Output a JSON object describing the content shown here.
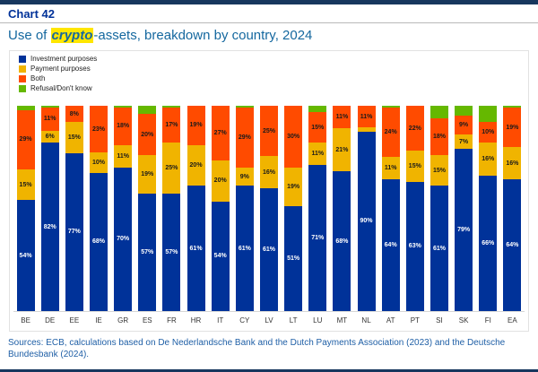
{
  "header": {
    "chart_label": "Chart 42",
    "title_prefix": "Use of ",
    "title_highlight": "crypto",
    "title_suffix": "-assets, breakdown by country, 2024"
  },
  "footer": {
    "sources": "Sources: ECB, calculations based on De Nederlandsche Bank and the Dutch Payments Association (2023) and the Deutsche Bundesbank (2024)."
  },
  "chart_data": {
    "type": "bar",
    "stacked": true,
    "unit": "%",
    "title": "Use of crypto-assets, breakdown by country, 2024",
    "legend_position": "top-left",
    "ylim": [
      0,
      100
    ],
    "label_min": 6,
    "categories": [
      "BE",
      "DE",
      "EE",
      "IE",
      "GR",
      "ES",
      "FR",
      "HR",
      "IT",
      "CY",
      "LV",
      "LT",
      "LU",
      "MT",
      "NL",
      "AT",
      "PT",
      "SI",
      "SK",
      "FI",
      "EA"
    ],
    "series": [
      {
        "name": "Investment purposes",
        "color": "#003299",
        "label_color": "#ffffff",
        "values": [
          54,
          82,
          77,
          68,
          70,
          57,
          57,
          61,
          54,
          61,
          61,
          51,
          71,
          68,
          90,
          64,
          63,
          61,
          79,
          66,
          64
        ]
      },
      {
        "name": "Payment purposes",
        "color": "#f0b400",
        "label_color": "#1a1a1a",
        "values": [
          15,
          6,
          15,
          10,
          11,
          19,
          25,
          20,
          20,
          9,
          16,
          19,
          11,
          21,
          2,
          11,
          15,
          15,
          7,
          16,
          16
        ]
      },
      {
        "name": "Both",
        "color": "#ff4b00",
        "label_color": "#1a1a1a",
        "values": [
          29,
          11,
          8,
          23,
          18,
          20,
          17,
          19,
          27,
          29,
          25,
          30,
          15,
          11,
          11,
          24,
          22,
          18,
          9,
          10,
          19
        ]
      },
      {
        "name": "Refusal/Don't know",
        "color": "#65b800",
        "label_color": "#1a1a1a",
        "labeled": false,
        "values": [
          2,
          1,
          0,
          0,
          1,
          4,
          1,
          0,
          0,
          1,
          0,
          0,
          3,
          0,
          0,
          1,
          0,
          6,
          5,
          8,
          1
        ]
      }
    ]
  }
}
